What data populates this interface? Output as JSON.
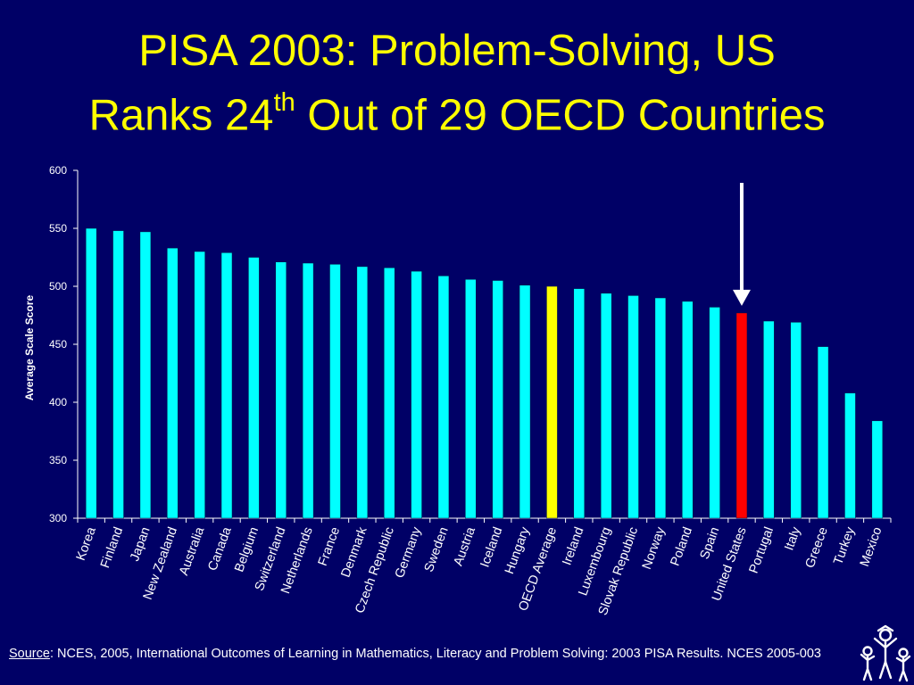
{
  "title": {
    "line1": "PISA 2003: Problem-Solving, US",
    "line2_prefix": "Ranks 24",
    "line2_sup": "th",
    "line2_suffix": " Out of 29 OECD Countries"
  },
  "source": {
    "label": "Source",
    "text": ": NCES, 2005, International Outcomes of Learning in Mathematics, Literacy and Problem Solving: 2003 PISA Results. NCES 2005-003"
  },
  "colors": {
    "background": "#000066",
    "title": "#FFFF00",
    "bar": "#00FFFF",
    "highlight_average": "#FFFF00",
    "highlight_us": "#FF0000",
    "axis": "#FFFFFF"
  },
  "chart_data": {
    "type": "bar",
    "ylabel": "Average Scale Score",
    "xlabel": "",
    "ylim": [
      300,
      600
    ],
    "yticks": [
      300,
      350,
      400,
      450,
      500,
      550,
      600
    ],
    "grid": false,
    "categories": [
      "Korea",
      "Finland",
      "Japan",
      "New Zealand",
      "Australia",
      "Canada",
      "Belgium",
      "Switzerland",
      "Netherlands",
      "France",
      "Denmark",
      "Czech Republic",
      "Germany",
      "Sweden",
      "Austria",
      "Iceland",
      "Hungary",
      "OECD Average",
      "Ireland",
      "Luxembourg",
      "Slovak Republic",
      "Norway",
      "Poland",
      "Spain",
      "United States",
      "Portugal",
      "Italy",
      "Greece",
      "Turkey",
      "Mexico"
    ],
    "values": [
      550,
      548,
      547,
      533,
      530,
      529,
      525,
      521,
      520,
      519,
      517,
      516,
      513,
      509,
      506,
      505,
      501,
      500,
      498,
      494,
      492,
      490,
      487,
      482,
      477,
      470,
      469,
      448,
      408,
      384
    ],
    "highlights": {
      "OECD Average": "#FFFF00",
      "United States": "#FF0000"
    },
    "annotation": {
      "type": "arrow",
      "target": "United States"
    }
  }
}
